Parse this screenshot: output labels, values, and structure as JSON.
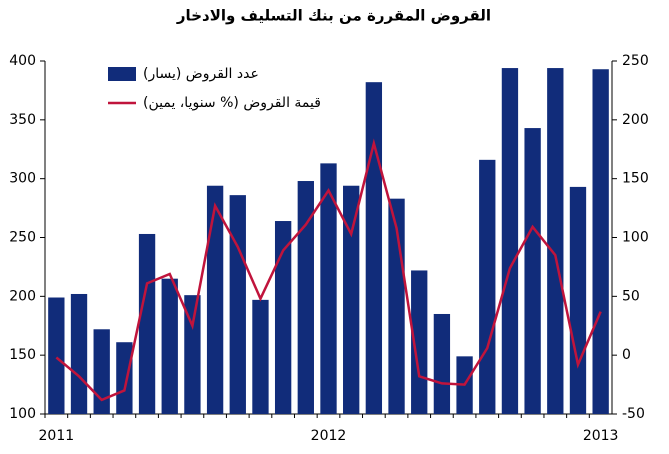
{
  "chart_data": {
    "type": "bar",
    "title": "القروض المقررة من بنك التسليف والادخار",
    "categories": [
      "2011",
      null,
      null,
      null,
      null,
      null,
      null,
      null,
      null,
      null,
      null,
      null,
      "2012",
      null,
      null,
      null,
      null,
      null,
      null,
      null,
      null,
      null,
      null,
      null,
      "2013"
    ],
    "series": [
      {
        "name": "عدد القروض (يسار)",
        "type": "bar",
        "color": "#112c7a",
        "values": [
          199,
          202,
          172,
          161,
          253,
          215,
          201,
          294,
          286,
          197,
          264,
          298,
          313,
          294,
          382,
          283,
          222,
          185,
          149,
          316,
          394,
          343,
          394,
          293,
          393
        ]
      },
      {
        "name": "قيمة القروض (% سنويا، يمين)",
        "type": "line",
        "axis": "y2",
        "color": "#c0143c",
        "values": [
          -2,
          -18,
          -38,
          -30,
          61,
          69,
          25,
          127,
          92,
          48,
          89,
          111,
          140,
          103,
          180,
          108,
          -18,
          -24,
          -25,
          6,
          74,
          109,
          85,
          -8,
          37
        ]
      }
    ],
    "ylim": [
      100,
      400
    ],
    "yticks": [
      100,
      150,
      200,
      250,
      300,
      350,
      400
    ],
    "y2lim": [
      -50,
      250
    ],
    "y2ticks": [
      -50,
      0,
      50,
      100,
      150,
      200,
      250
    ],
    "legend": "top-left"
  }
}
